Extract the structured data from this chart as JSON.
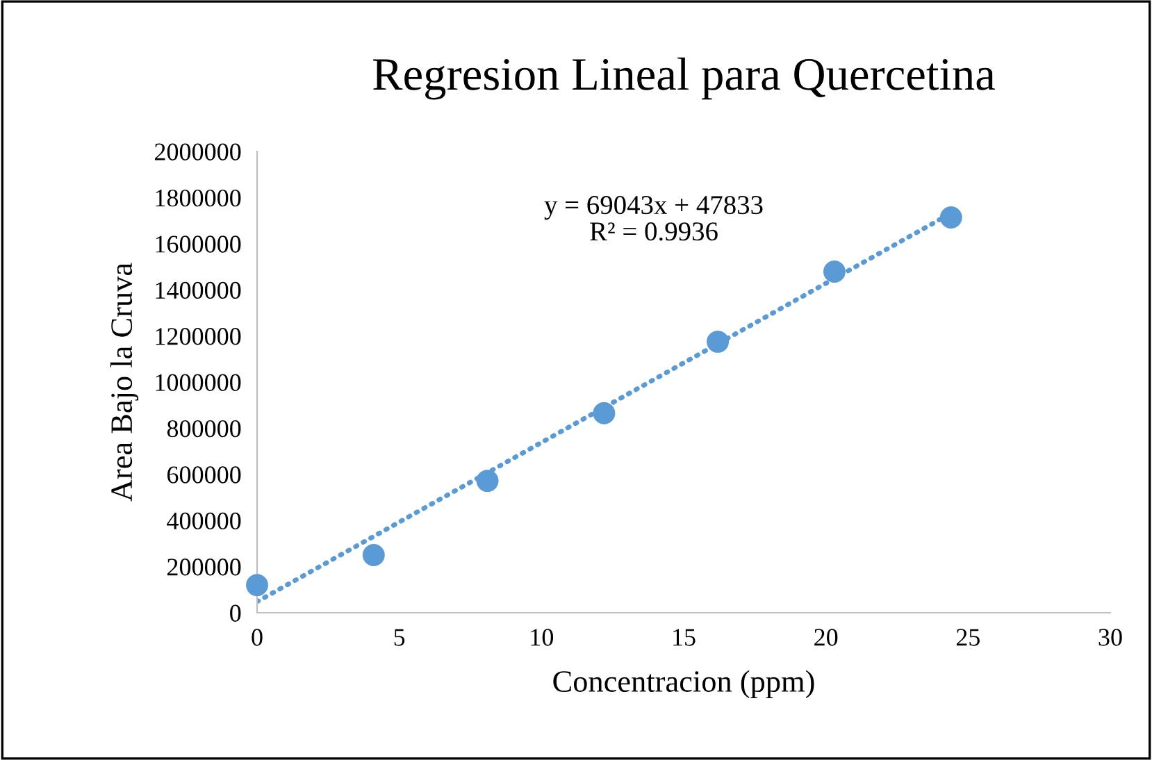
{
  "chart_data": {
    "type": "scatter",
    "title": "Regresion Lineal para Quercetina",
    "xlabel": "Concentracion (ppm)",
    "ylabel": "Area Bajo la Cruva",
    "x": [
      0,
      4.1,
      8.1,
      12.2,
      16.2,
      20.3,
      24.4
    ],
    "series": [
      {
        "color": "#5b9bd5",
        "values": [
          120000,
          250000,
          572000,
          865000,
          1175000,
          1479000,
          1714000
        ],
        "marker": "circle"
      },
      {
        "type": "line",
        "color": "#5b9bd5",
        "x": [
          0,
          24.4
        ],
        "values": [
          48000,
          1732000
        ],
        "line_style": "dotted",
        "marker": "none"
      }
    ],
    "annotations": [
      "y = 69043x + 47833\nR² = 0.9936"
    ],
    "xlim": [
      0,
      30
    ],
    "xticks": [
      0,
      5,
      10,
      15,
      20,
      25,
      30
    ],
    "ylim": [
      0,
      2000000
    ],
    "yticks": [
      0,
      200000,
      400000,
      600000,
      800000,
      1000000,
      1200000,
      1400000,
      1600000,
      1800000,
      2000000
    ],
    "grid": false,
    "legend": false
  }
}
